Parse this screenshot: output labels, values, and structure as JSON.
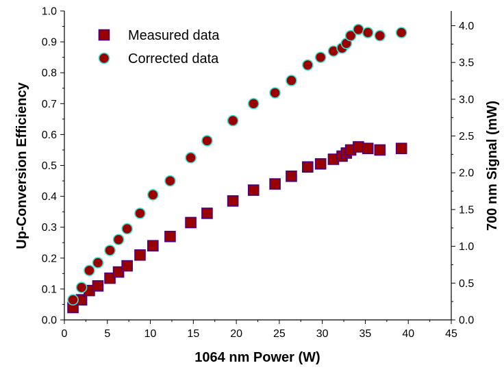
{
  "chart_data": {
    "type": "scatter",
    "xlabel": "1064 nm Power (W)",
    "ylabel": "Up-Conversion Efficiency",
    "y2label": "700 nm Signal (mW)",
    "xlim": [
      0,
      45
    ],
    "ylim": [
      0.0,
      1.0
    ],
    "y2lim": [
      0.0,
      4.2
    ],
    "x_ticks": [
      "0",
      "5",
      "10",
      "15",
      "20",
      "25",
      "30",
      "35",
      "40",
      "45"
    ],
    "y_ticks": [
      "0.0",
      "0.1",
      "0.2",
      "0.3",
      "0.4",
      "0.5",
      "0.6",
      "0.7",
      "0.8",
      "0.9",
      "1.0"
    ],
    "y2_ticks": [
      "0.0",
      "0.5",
      "1.0",
      "1.5",
      "2.0",
      "2.5",
      "3.0",
      "3.5",
      "4.0"
    ],
    "grid": false,
    "legend_position": "top-left",
    "series": [
      {
        "name": "Measured data",
        "marker": "square",
        "fill_color": "#990000",
        "edge_color": "#4b0082",
        "axis": "left",
        "x": [
          1.0,
          2.0,
          2.9,
          3.9,
          5.3,
          6.3,
          7.3,
          8.8,
          10.3,
          12.3,
          14.7,
          16.6,
          19.6,
          22.0,
          24.5,
          26.4,
          28.3,
          29.8,
          31.3,
          32.3,
          32.8,
          33.3,
          34.2,
          35.3,
          36.7,
          39.2
        ],
        "y": [
          0.04,
          0.065,
          0.095,
          0.11,
          0.135,
          0.155,
          0.175,
          0.21,
          0.24,
          0.27,
          0.315,
          0.345,
          0.385,
          0.42,
          0.44,
          0.465,
          0.495,
          0.505,
          0.52,
          0.53,
          0.54,
          0.55,
          0.56,
          0.555,
          0.55,
          0.555
        ]
      },
      {
        "name": "Corrected data",
        "marker": "circle",
        "fill_color": "#990000",
        "edge_color": "#40e0d0",
        "axis": "left",
        "x": [
          1.0,
          2.0,
          2.9,
          3.9,
          5.3,
          6.3,
          7.3,
          8.8,
          10.3,
          12.3,
          14.7,
          16.6,
          19.6,
          22.0,
          24.5,
          26.4,
          28.3,
          29.8,
          31.3,
          32.3,
          32.8,
          33.3,
          34.2,
          35.3,
          36.7,
          39.2
        ],
        "y": [
          0.065,
          0.105,
          0.16,
          0.185,
          0.225,
          0.26,
          0.295,
          0.345,
          0.405,
          0.45,
          0.525,
          0.58,
          0.645,
          0.7,
          0.735,
          0.775,
          0.825,
          0.85,
          0.87,
          0.88,
          0.895,
          0.92,
          0.94,
          0.93,
          0.92,
          0.93
        ]
      }
    ]
  }
}
